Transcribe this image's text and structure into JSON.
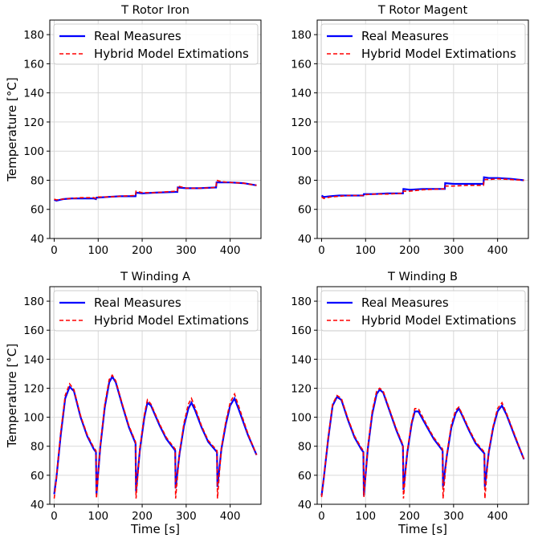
{
  "chart_data": [
    {
      "type": "line",
      "title": "T Rotor Iron",
      "xlabel": "",
      "ylabel": "Temperature [°C]",
      "xlim": [
        -10,
        470
      ],
      "ylim": [
        40,
        190
      ],
      "xticks": [
        0,
        100,
        200,
        300,
        400
      ],
      "yticks": [
        40,
        60,
        80,
        100,
        120,
        140,
        160,
        180
      ],
      "grid": true,
      "legend_position": "top-left",
      "series": [
        {
          "name": "Real Measures",
          "color": "#0000ff",
          "style": "solid",
          "x": [
            0,
            5,
            20,
            40,
            60,
            90,
            95,
            96,
            120,
            150,
            180,
            185,
            186,
            200,
            230,
            275,
            280,
            281,
            300,
            330,
            365,
            368,
            369,
            380,
            400,
            430,
            460
          ],
          "y": [
            66.5,
            66,
            67,
            67.5,
            67.5,
            67.5,
            67,
            68,
            68.5,
            69,
            69,
            69,
            71.5,
            71,
            71.5,
            72,
            72,
            75,
            74.5,
            74.5,
            75,
            75,
            78.5,
            78.5,
            78.5,
            78,
            76.5
          ]
        },
        {
          "name": "Hybrid Model Extimations",
          "color": "#ff0000",
          "style": "dashed",
          "x": [
            0,
            5,
            20,
            40,
            60,
            90,
            95,
            96,
            120,
            150,
            180,
            185,
            186,
            200,
            230,
            275,
            280,
            281,
            300,
            330,
            365,
            368,
            369,
            380,
            400,
            430,
            460
          ],
          "y": [
            67,
            66.5,
            67,
            67.5,
            68,
            68,
            67.5,
            68.5,
            68.5,
            69,
            69.5,
            69.5,
            72.5,
            71.5,
            71.5,
            72.5,
            72.5,
            76,
            74.5,
            74.5,
            75,
            75,
            80,
            79,
            78.5,
            78,
            76.5
          ]
        }
      ]
    },
    {
      "type": "line",
      "title": "T Rotor Magent",
      "xlabel": "",
      "ylabel": "",
      "xlim": [
        -10,
        470
      ],
      "ylim": [
        40,
        190
      ],
      "xticks": [
        0,
        100,
        200,
        300,
        400
      ],
      "yticks": [
        40,
        60,
        80,
        100,
        120,
        140,
        160,
        180
      ],
      "grid": true,
      "legend_position": "top-left",
      "series": [
        {
          "name": "Real Measures",
          "color": "#0000ff",
          "style": "solid",
          "x": [
            0,
            5,
            20,
            40,
            60,
            90,
            95,
            96,
            120,
            150,
            180,
            185,
            186,
            200,
            230,
            275,
            280,
            281,
            300,
            330,
            365,
            368,
            369,
            380,
            400,
            430,
            460
          ],
          "y": [
            69.5,
            68.5,
            69,
            69.5,
            69.5,
            69.5,
            69.5,
            70.5,
            70.5,
            71,
            71,
            71,
            74,
            73.5,
            74,
            74,
            74,
            78,
            77.5,
            77.5,
            77.5,
            77.5,
            82,
            81.5,
            81.5,
            81,
            80
          ]
        },
        {
          "name": "Hybrid Model Extimations",
          "color": "#ff0000",
          "style": "dashed",
          "x": [
            0,
            5,
            20,
            40,
            60,
            90,
            95,
            96,
            120,
            150,
            180,
            185,
            186,
            200,
            230,
            275,
            280,
            281,
            300,
            330,
            365,
            368,
            369,
            380,
            400,
            430,
            460
          ],
          "y": [
            68.5,
            67.5,
            68.5,
            69,
            69.5,
            69.5,
            69.5,
            70,
            70.5,
            70.5,
            71,
            71,
            72.5,
            72.5,
            73.5,
            74,
            74,
            76,
            76,
            76.5,
            76.5,
            76.5,
            80.5,
            80.5,
            81,
            80.5,
            80
          ]
        }
      ]
    },
    {
      "type": "line",
      "title": "T Winding A",
      "xlabel": "Time [s]",
      "ylabel": "Temperature [°C]",
      "xlim": [
        -10,
        470
      ],
      "ylim": [
        40,
        190
      ],
      "xticks": [
        0,
        100,
        200,
        300,
        400
      ],
      "yticks": [
        40,
        60,
        80,
        100,
        120,
        140,
        160,
        180
      ],
      "grid": true,
      "legend_position": "top-left",
      "series": [
        {
          "name": "Real Measures",
          "color": "#0000ff",
          "style": "solid",
          "x": [
            0,
            5,
            15,
            25,
            35,
            45,
            60,
            75,
            90,
            95,
            96,
            105,
            115,
            125,
            132,
            140,
            155,
            170,
            185,
            186,
            195,
            205,
            212,
            220,
            240,
            255,
            275,
            276,
            285,
            295,
            305,
            312,
            320,
            335,
            350,
            370,
            371,
            380,
            390,
            400,
            410,
            420,
            440,
            460
          ],
          "y": [
            47,
            58,
            88,
            113,
            121,
            118,
            100,
            87,
            78,
            76,
            47,
            80,
            107,
            124,
            128,
            124,
            108,
            93,
            82,
            49,
            78,
            100,
            110,
            108,
            94,
            85,
            77,
            51,
            75,
            94,
            106,
            110,
            105,
            93,
            83,
            76,
            52,
            78,
            95,
            108,
            113,
            105,
            88,
            74
          ]
        },
        {
          "name": "Hybrid Model Extimations",
          "color": "#ff0000",
          "style": "dashed",
          "x": [
            0,
            5,
            15,
            25,
            35,
            45,
            60,
            75,
            90,
            95,
            96,
            105,
            115,
            125,
            132,
            140,
            155,
            170,
            185,
            186,
            195,
            205,
            212,
            220,
            240,
            255,
            275,
            276,
            285,
            295,
            305,
            312,
            320,
            335,
            350,
            370,
            371,
            380,
            390,
            400,
            410,
            420,
            440,
            460
          ],
          "y": [
            44,
            58,
            90,
            115,
            123,
            119,
            101,
            88,
            79,
            77,
            44,
            81,
            109,
            126,
            129,
            125,
            109,
            94,
            83,
            44,
            79,
            102,
            112,
            109,
            95,
            86,
            78,
            44,
            76,
            96,
            109,
            113,
            107,
            94,
            84,
            77,
            44,
            79,
            97,
            110,
            116,
            107,
            89,
            74
          ]
        }
      ]
    },
    {
      "type": "line",
      "title": "T Winding B",
      "xlabel": "Time [s]",
      "ylabel": "",
      "xlim": [
        -10,
        470
      ],
      "ylim": [
        40,
        190
      ],
      "xticks": [
        0,
        100,
        200,
        300,
        400
      ],
      "yticks": [
        40,
        60,
        80,
        100,
        120,
        140,
        160,
        180
      ],
      "grid": true,
      "legend_position": "top-left",
      "series": [
        {
          "name": "Real Measures",
          "color": "#0000ff",
          "style": "solid",
          "x": [
            0,
            5,
            15,
            25,
            35,
            45,
            60,
            75,
            90,
            95,
            96,
            105,
            115,
            125,
            132,
            140,
            155,
            170,
            185,
            186,
            195,
            205,
            212,
            220,
            240,
            255,
            275,
            276,
            285,
            295,
            305,
            312,
            320,
            335,
            350,
            370,
            371,
            380,
            390,
            400,
            410,
            420,
            440,
            460
          ],
          "y": [
            46,
            58,
            85,
            108,
            114,
            112,
            98,
            86,
            78,
            76,
            46,
            78,
            102,
            116,
            119,
            117,
            104,
            91,
            80,
            50,
            76,
            96,
            104,
            104,
            93,
            85,
            77,
            52,
            74,
            93,
            103,
            106,
            101,
            91,
            82,
            75,
            52,
            76,
            93,
            104,
            108,
            102,
            86,
            71
          ]
        },
        {
          "name": "Hybrid Model Extimations",
          "color": "#ff0000",
          "style": "dashed",
          "x": [
            0,
            5,
            15,
            25,
            35,
            45,
            60,
            75,
            90,
            95,
            96,
            105,
            115,
            125,
            132,
            140,
            155,
            170,
            185,
            186,
            195,
            205,
            212,
            220,
            240,
            255,
            275,
            276,
            285,
            295,
            305,
            312,
            320,
            335,
            350,
            370,
            371,
            380,
            390,
            400,
            410,
            420,
            440,
            460
          ],
          "y": [
            45,
            58,
            86,
            109,
            115,
            113,
            99,
            87,
            79,
            77,
            45,
            79,
            104,
            118,
            120,
            118,
            105,
            92,
            81,
            44,
            77,
            97,
            106,
            106,
            94,
            86,
            78,
            44,
            75,
            95,
            105,
            107,
            102,
            92,
            83,
            76,
            44,
            77,
            94,
            106,
            110,
            103,
            87,
            71
          ]
        }
      ]
    }
  ]
}
